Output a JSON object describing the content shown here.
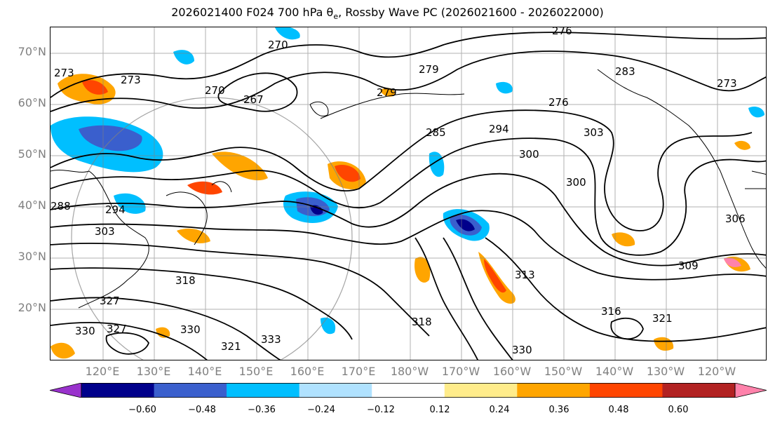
{
  "title": "2026021400 F024 700 hPa θe, Rossby Wave PC (2026021600 - 2026022000)",
  "title_parts": {
    "prefix": "2026021400 F024 700 hPa ",
    "theta": "θ",
    "sub": "e",
    "suffix": ", Rossby Wave PC (2026021600 - 2026022000)"
  },
  "lat_ticks": [
    "70°N",
    "60°N",
    "50°N",
    "40°N",
    "30°N",
    "20°N"
  ],
  "lon_ticks": [
    "120°E",
    "130°E",
    "140°E",
    "150°E",
    "160°E",
    "170°E",
    "180°W",
    "170°W",
    "160°W",
    "150°W",
    "140°W",
    "130°W",
    "120°W"
  ],
  "colorbar": {
    "colors": [
      "#9932cc",
      "#00008b",
      "#3a5fcd",
      "#00bfff",
      "#b0e2ff",
      "#ffffff",
      "#ffec8b",
      "#ffa500",
      "#ff4500",
      "#b22222",
      "#ff82ab"
    ],
    "tick_labels": [
      "−0.60",
      "−0.48",
      "−0.36",
      "−0.24",
      "−0.12",
      "0.12",
      "0.24",
      "0.36",
      "0.48",
      "0.60"
    ]
  },
  "contour_labels": [
    "276",
    "270",
    "273",
    "267",
    "273",
    "270",
    "279",
    "279",
    "283",
    "273",
    "285",
    "294",
    "276",
    "303",
    "300",
    "300",
    "288",
    "294",
    "303",
    "306",
    "318",
    "313",
    "309",
    "327",
    "318",
    "316",
    "321",
    "330",
    "321",
    "330",
    "330",
    "333",
    "327"
  ],
  "colors": {
    "grid": "#808080",
    "contour": "#000000",
    "coast": "#000000"
  }
}
